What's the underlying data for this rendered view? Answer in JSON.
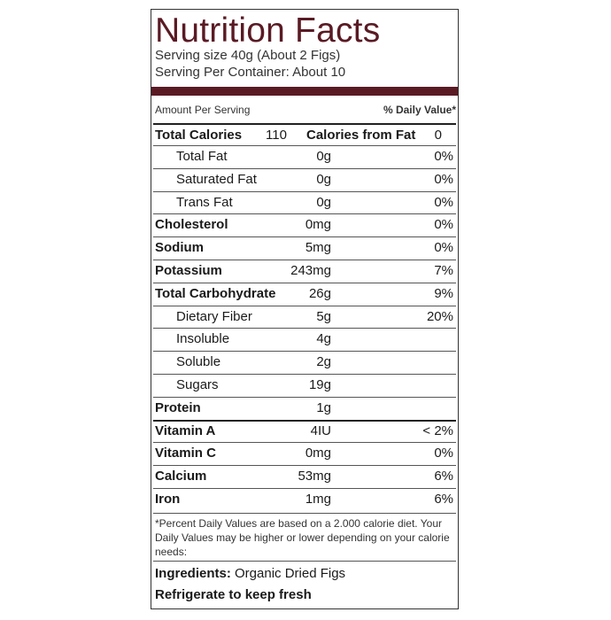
{
  "header": {
    "title": "Nutrition Facts",
    "serving_size": "Serving size 40g (About 2 Figs)",
    "servings": "Serving Per Container: About 10"
  },
  "amount_per_serving": "Amount Per Serving",
  "daily_value_header": "% Daily Value*",
  "calories": {
    "label": "Total Calories",
    "value": "110",
    "fat_label": "Calories from Fat",
    "fat_value": "0"
  },
  "rows": [
    {
      "name": "Total Fat",
      "amount": "0g",
      "dv": "0%",
      "indent": true
    },
    {
      "name": "Saturated Fat",
      "amount": "0g",
      "dv": "0%",
      "indent": true
    },
    {
      "name": "Trans Fat",
      "amount": "0g",
      "dv": "0%",
      "indent": true
    },
    {
      "name": "Cholesterol",
      "amount": "0mg",
      "dv": "0%",
      "indent": false
    },
    {
      "name": "Sodium",
      "amount": "5mg",
      "dv": "0%",
      "indent": false
    },
    {
      "name": "Potassium",
      "amount": "243mg",
      "dv": "7%",
      "indent": false
    },
    {
      "name": "Total Carbohydrate",
      "amount": "26g",
      "dv": "9%",
      "indent": false
    },
    {
      "name": "Dietary Fiber",
      "amount": "5g",
      "dv": "20%",
      "indent": true
    },
    {
      "name": "Insoluble",
      "amount": "4g",
      "indent": true
    },
    {
      "name": "Soluble",
      "amount": "2g",
      "indent": true
    },
    {
      "name": "Sugars",
      "amount": "19g",
      "indent": true
    },
    {
      "name": "Protein",
      "amount": "1g",
      "indent": false
    },
    {
      "name": "Vitamin A",
      "amount": "4IU",
      "dv": "< 2%",
      "indent": false
    },
    {
      "name": "Vitamin C",
      "amount": "0mg",
      "dv": "0%",
      "indent": false
    },
    {
      "name": "Calcium",
      "amount": "53mg",
      "dv": "6%",
      "indent": false
    },
    {
      "name": "Iron",
      "amount": "1mg",
      "dv": "6%",
      "indent": false
    }
  ],
  "footnote": "*Percent Daily Values are based on a 2.000 calorie diet. Your Daily Values may be higher or lower depending on your calorie needs:",
  "ingredients": {
    "label": "Ingredients:",
    "text": "Organic Dried Figs"
  },
  "storage": "Refrigerate to keep fresh"
}
